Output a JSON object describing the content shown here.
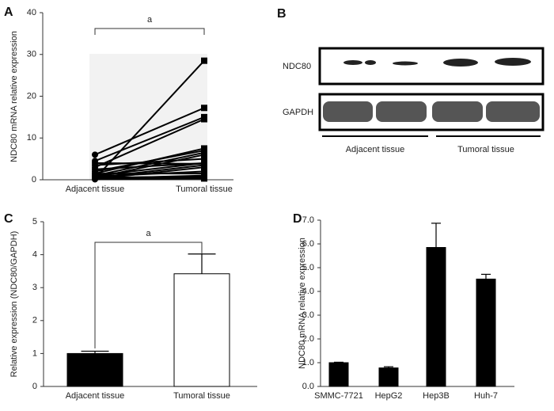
{
  "chart_data": [
    {
      "type": "paired",
      "label": "A",
      "ylabel": "NDC80 mRNA relative expression",
      "categories": [
        "Adjacent tissue",
        "Tumoral tissue"
      ],
      "color": "#000000",
      "ylim": [
        0,
        40
      ],
      "yticks": [
        0,
        10,
        20,
        30,
        40
      ],
      "annotation": "a",
      "series": [
        {
          "values": [
            0.3,
            28.5
          ]
        },
        {
          "values": [
            6,
            17.2
          ]
        },
        {
          "values": [
            4.5,
            15
          ]
        },
        {
          "values": [
            3,
            14.5
          ]
        },
        {
          "values": [
            1.5,
            7.5
          ]
        },
        {
          "values": [
            2,
            7
          ]
        },
        {
          "values": [
            1,
            6.5
          ]
        },
        {
          "values": [
            0.5,
            6
          ]
        },
        {
          "values": [
            3.5,
            5
          ]
        },
        {
          "values": [
            2.5,
            4
          ]
        },
        {
          "values": [
            1,
            4
          ]
        },
        {
          "values": [
            0.5,
            3.5
          ]
        },
        {
          "values": [
            0.2,
            3
          ]
        },
        {
          "values": [
            0.8,
            2
          ]
        },
        {
          "values": [
            1.5,
            1.5
          ]
        },
        {
          "values": [
            0.3,
            1
          ]
        },
        {
          "values": [
            0.5,
            0.8
          ]
        },
        {
          "values": [
            0.2,
            0.5
          ]
        },
        {
          "values": [
            0.1,
            0.3
          ]
        },
        {
          "values": [
            4,
            3.8
          ]
        }
      ]
    },
    {
      "type": "blot",
      "label": "B",
      "rows": [
        "NDC80",
        "GAPDH"
      ],
      "groups": [
        "Adjacent tissue",
        "Tumoral tissue"
      ]
    },
    {
      "type": "bar",
      "label": "C",
      "ylabel": "Relative expression (NDC80/GAPDH)",
      "categories": [
        "Adjacent tissue",
        "Tumoral tissue"
      ],
      "values": [
        1.0,
        3.42
      ],
      "errors": [
        0.07,
        0.6
      ],
      "colors": [
        "#000000",
        "#ffffff"
      ],
      "ylim": [
        0,
        5
      ],
      "yticks": [
        0,
        1,
        2,
        3,
        4,
        5
      ],
      "annotation": "a"
    },
    {
      "type": "bar",
      "label": "D",
      "ylabel": "NDC80 mRNA relative expression",
      "categories": [
        "SMMC-7721",
        "HepG2",
        "Hep3B",
        "Huh-7"
      ],
      "values": [
        1.0,
        0.78,
        5.85,
        4.52
      ],
      "errors": [
        0.02,
        0.05,
        1.02,
        0.2
      ],
      "colors": [
        "#000000",
        "#000000",
        "#000000",
        "#000000"
      ],
      "ylim": [
        0,
        7
      ],
      "yticks": [
        {
          "value": 0,
          "label": "0.0"
        },
        {
          "value": 1,
          "label": "1.0"
        },
        {
          "value": 2,
          "label": "2.0"
        },
        {
          "value": 3,
          "label": "3.0"
        },
        {
          "value": 4,
          "label": "4.0"
        },
        {
          "value": 5,
          "label": "5.0"
        },
        {
          "value": 6,
          "label": "6.0"
        },
        {
          "value": 7,
          "label": "7.0"
        }
      ]
    }
  ]
}
